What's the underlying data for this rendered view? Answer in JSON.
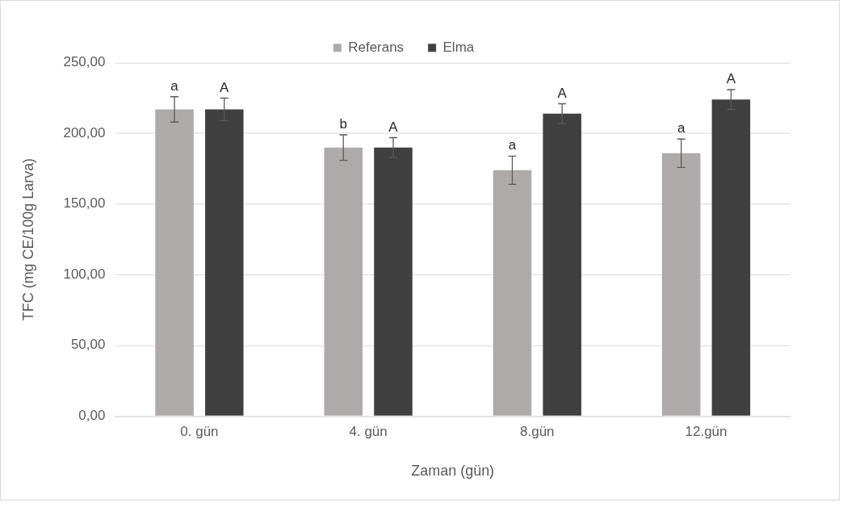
{
  "chart_data": {
    "type": "bar",
    "xlabel": "Zaman (gün)",
    "ylabel": "TFC (mg CE/100g Larva)",
    "categories": [
      "0. gün",
      "4. gün",
      "8.gün",
      "12.gün"
    ],
    "series": [
      {
        "name": "Referans",
        "color": "#aeaaaa",
        "values": [
          217,
          190,
          174,
          186
        ],
        "errors": [
          9,
          9,
          10,
          10
        ]
      },
      {
        "name": "Elma",
        "color": "#404040",
        "values": [
          217,
          190,
          214,
          224
        ],
        "errors": [
          8,
          7,
          7,
          7
        ]
      }
    ],
    "ylim": [
      0,
      250
    ],
    "yticks": [
      {
        "value": 0,
        "label": "0,00"
      },
      {
        "value": 50,
        "label": "50,00"
      },
      {
        "value": 100,
        "label": "100,00"
      },
      {
        "value": 150,
        "label": "150,00"
      },
      {
        "value": 200,
        "label": "200,00"
      },
      {
        "value": 250,
        "label": "250,00"
      }
    ],
    "grid": "y",
    "legend": "top",
    "annotations": [
      "a",
      "b",
      "a",
      "a",
      "A",
      "A",
      "A",
      "A"
    ]
  }
}
